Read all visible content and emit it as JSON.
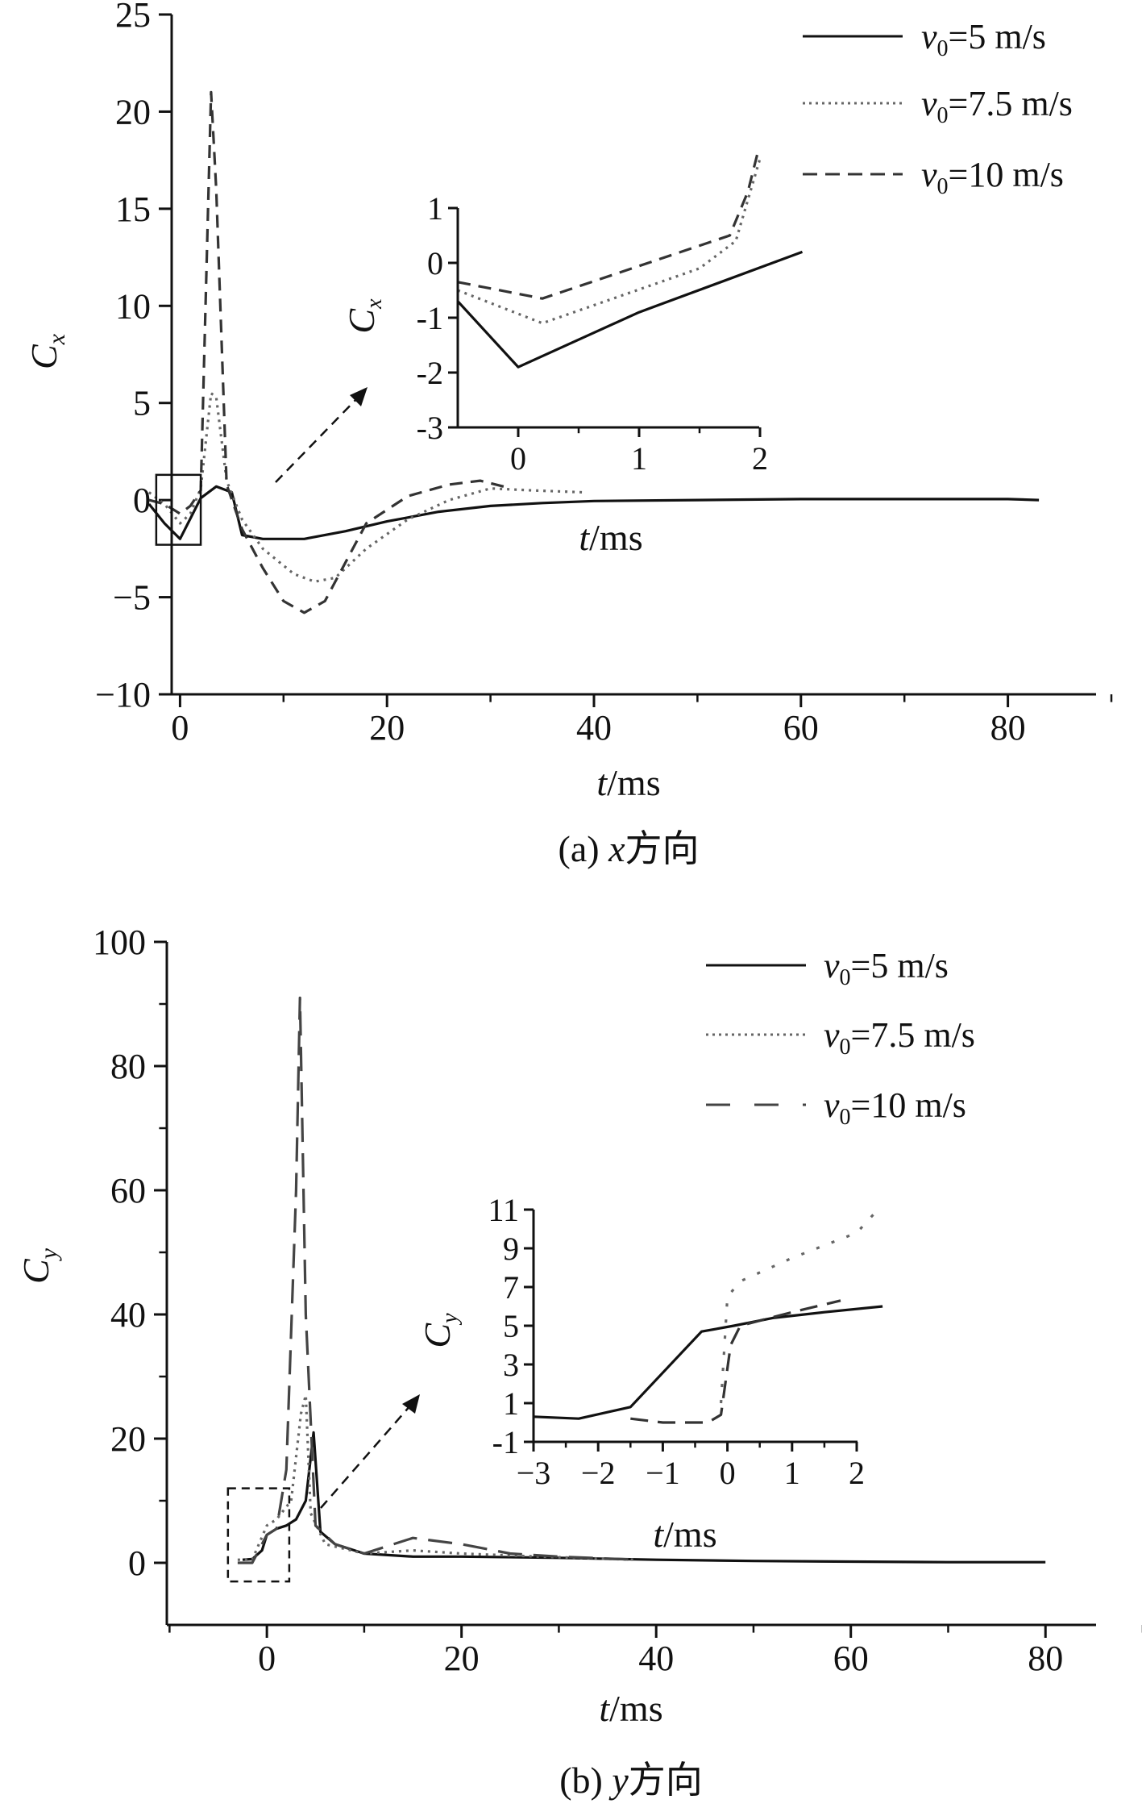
{
  "chart_data": [
    {
      "type": "line",
      "caption": {
        "prefix": "(a) ",
        "axis_var": "x",
        "suffix": "方向"
      },
      "xlabel": {
        "var": "t",
        "unit": "/ms"
      },
      "ylabel": {
        "base": "C",
        "sub": "x"
      },
      "xlim": [
        -10,
        90
      ],
      "ylim": [
        -10,
        25
      ],
      "xticks": [
        0,
        20,
        40,
        60,
        80
      ],
      "yticks": [
        -10,
        -5,
        0,
        5,
        10,
        15,
        20,
        25
      ],
      "xtick_labels": [
        "0",
        "20",
        "40",
        "60",
        "80"
      ],
      "ytick_labels": [
        "−10",
        "−5",
        "0",
        "5",
        "10",
        "15",
        "20",
        "25"
      ],
      "legend_position": "top-right",
      "series": [
        {
          "name": "v0=5 m/s",
          "label_var": "v",
          "label_sub": "0",
          "label_rest": "=5 m/s",
          "style": "solid",
          "color": "#111111",
          "x": [
            -3,
            -1.5,
            0,
            2,
            3.5,
            5,
            6,
            8,
            12,
            16,
            20,
            25,
            30,
            35,
            40,
            50,
            60,
            70,
            80,
            83
          ],
          "y": [
            -0.2,
            -1.2,
            -2.0,
            0.1,
            0.7,
            0.4,
            -1.8,
            -2.0,
            -2.0,
            -1.6,
            -1.1,
            -0.6,
            -0.3,
            -0.15,
            -0.05,
            0.0,
            0.05,
            0.05,
            0.05,
            0.0
          ]
        },
        {
          "name": "v0=7.5 m/s",
          "label_var": "v",
          "label_sub": "0",
          "label_rest": "=7.5 m/s",
          "style": "dotted",
          "color": "#666666",
          "x": [
            -3,
            -1.5,
            0,
            1,
            2,
            3,
            3.5,
            4.5,
            6,
            8,
            11,
            13,
            15,
            18,
            22,
            26,
            30,
            34,
            39
          ],
          "y": [
            0.4,
            -0.2,
            -1.2,
            -0.7,
            0.6,
            5.5,
            5.3,
            1.0,
            -1.0,
            -2.5,
            -3.8,
            -4.2,
            -4.0,
            -2.5,
            -1.0,
            0.0,
            0.6,
            0.5,
            0.4
          ]
        },
        {
          "name": "v0=10 m/s",
          "label_var": "v",
          "label_sub": "0",
          "label_rest": "=10 m/s",
          "style": "dashed",
          "color": "#333333",
          "x": [
            -3,
            -1.5,
            0,
            1,
            2,
            3,
            3.5,
            4.5,
            6,
            8,
            10,
            12,
            14,
            16,
            18,
            22,
            26,
            29,
            32
          ],
          "y": [
            0.0,
            -0.2,
            -0.7,
            -0.3,
            0.5,
            21.0,
            16.0,
            0.8,
            -1.5,
            -3.5,
            -5.2,
            -5.8,
            -5.2,
            -3.2,
            -1.2,
            0.2,
            0.8,
            1.0,
            0.6
          ]
        }
      ],
      "highlight_box": {
        "x0": -2.3,
        "x1": 2,
        "y0": -2.3,
        "y1": 1.3
      },
      "inset": {
        "xlabel": {
          "var": "t",
          "unit": "/ms"
        },
        "ylabel": {
          "base": "C",
          "sub": "x"
        },
        "xlim": [
          -0.5,
          2
        ],
        "ylim": [
          -3,
          1
        ],
        "xticks": [
          0,
          1,
          2
        ],
        "yticks": [
          -3,
          -2,
          -1,
          0,
          1
        ],
        "xtick_labels": [
          "0",
          "1",
          "2"
        ],
        "ytick_labels": [
          "-3",
          "-2",
          "-1",
          "0",
          "1"
        ],
        "series": [
          {
            "style": "solid",
            "x": [
              -0.5,
              0,
              1,
              2.35
            ],
            "y": [
              -0.7,
              -1.9,
              -0.9,
              0.2
            ]
          },
          {
            "style": "dotted",
            "x": [
              -0.5,
              0.2,
              1.5,
              1.8,
              2.0
            ],
            "y": [
              -0.5,
              -1.1,
              -0.1,
              0.4,
              1.9
            ]
          },
          {
            "style": "dashed",
            "x": [
              -0.5,
              0.2,
              1.75,
              1.9,
              1.98
            ],
            "y": [
              -0.35,
              -0.65,
              0.5,
              1.3,
              2.0
            ]
          }
        ]
      }
    },
    {
      "type": "line",
      "caption": {
        "prefix": "(b) ",
        "axis_var": "y",
        "suffix": "方向"
      },
      "xlabel": {
        "var": "t",
        "unit": "/ms"
      },
      "ylabel": {
        "base": "C",
        "sub": "y"
      },
      "xlim": [
        -15,
        90
      ],
      "ylim": [
        -10,
        100
      ],
      "xticks": [
        0,
        20,
        40,
        60,
        80
      ],
      "yticks": [
        0,
        20,
        40,
        60,
        80,
        100
      ],
      "xtick_labels": [
        "0",
        "20",
        "40",
        "60",
        "80"
      ],
      "ytick_labels": [
        "0",
        "20",
        "40",
        "60",
        "80",
        "100"
      ],
      "legend_position": "top-right",
      "series": [
        {
          "name": "v0=5 m/s",
          "label_var": "v",
          "label_sub": "0",
          "label_rest": "=5 m/s",
          "style": "solid",
          "color": "#111111",
          "x": [
            -2.5,
            -1.5,
            -0.5,
            0,
            1,
            2,
            3,
            4,
            4.8,
            5.5,
            7,
            10,
            15,
            20,
            30,
            40,
            50,
            60,
            70,
            80
          ],
          "y": [
            0.5,
            0.6,
            2.0,
            4.5,
            5.5,
            6.0,
            7.0,
            10.0,
            21.0,
            5.0,
            3.0,
            1.5,
            1.0,
            1.0,
            0.8,
            0.5,
            0.3,
            0.2,
            0.1,
            0.1
          ]
        },
        {
          "name": "v0=7.5 m/s",
          "label_var": "v",
          "label_sub": "0",
          "label_rest": "=7.5 m/s",
          "style": "dotted",
          "color": "#666666",
          "x": [
            -3,
            -1.5,
            0,
            1,
            2.5,
            3.5,
            4,
            4.5,
            6,
            10,
            15,
            20,
            28,
            38
          ],
          "y": [
            0.5,
            0.5,
            6.0,
            7.0,
            10.0,
            24.0,
            27.0,
            8.0,
            3.0,
            1.5,
            2.0,
            1.5,
            1.0,
            0.5
          ]
        },
        {
          "name": "v0=10 m/s",
          "label_var": "v",
          "label_sub": "0",
          "label_rest": "=10 m/s",
          "style": "dashed",
          "color": "#444444",
          "x": [
            -3,
            -1.5,
            0,
            1,
            2,
            3,
            3.4,
            4,
            5,
            7,
            10,
            15,
            20,
            25,
            30,
            38
          ],
          "y": [
            0.0,
            0.0,
            4.5,
            5.5,
            15.0,
            60.0,
            91.0,
            40.0,
            6.0,
            3.0,
            1.5,
            4.0,
            3.0,
            1.5,
            1.0,
            0.5
          ]
        }
      ],
      "highlight_box": {
        "x0": -4,
        "x1": 2.3,
        "y0": -3,
        "y1": 12
      },
      "inset": {
        "xlabel": {
          "var": "t",
          "unit": "/ms"
        },
        "ylabel": {
          "base": "C",
          "sub": "y"
        },
        "xlim": [
          -3,
          2
        ],
        "ylim": [
          -1,
          11
        ],
        "xticks": [
          -3,
          -2,
          -1,
          0,
          1,
          2
        ],
        "yticks": [
          -1,
          1,
          3,
          5,
          7,
          9,
          11
        ],
        "xtick_labels": [
          "−3",
          "−2",
          "−1",
          "0",
          "1",
          "2"
        ],
        "ytick_labels": [
          "-1",
          "1",
          "3",
          "5",
          "7",
          "9",
          "11"
        ],
        "series": [
          {
            "style": "solid",
            "x": [
              -3,
              -2.3,
              -1.5,
              -0.4,
              0.1,
              0.7,
              1.5,
              2.4
            ],
            "y": [
              0.3,
              0.2,
              0.8,
              4.7,
              5.0,
              5.4,
              5.7,
              6.0
            ]
          },
          {
            "style": "dotted",
            "x": [
              -0.1,
              0,
              0.2,
              1,
              2,
              2.3
            ],
            "y": [
              1.0,
              6.5,
              7.3,
              8.5,
              9.8,
              10.9
            ]
          },
          {
            "style": "dashed",
            "x": [
              -1.5,
              -1,
              -0.3,
              -0.1,
              0.05,
              0.2,
              1,
              1.75
            ],
            "y": [
              0.2,
              0.0,
              0.0,
              0.4,
              4.0,
              5.0,
              5.7,
              6.3
            ]
          }
        ]
      }
    }
  ]
}
